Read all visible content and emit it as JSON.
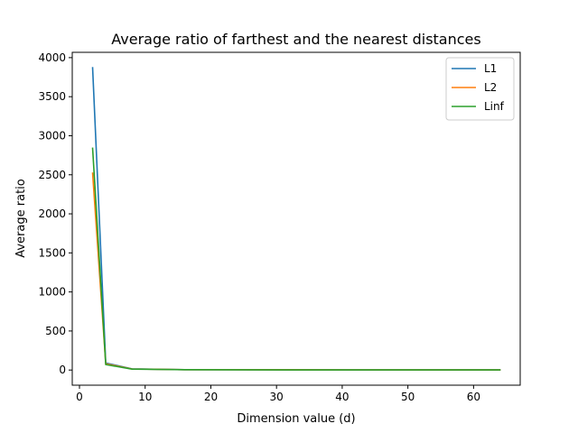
{
  "chart_data": {
    "type": "line",
    "title": "Average ratio of  farthest and the nearest distances",
    "xlabel": "Dimension value (d)",
    "ylabel": "Average ratio",
    "xlim": [
      -1.1,
      67.1
    ],
    "ylim": [
      -194,
      4068
    ],
    "xticks": [
      0,
      10,
      20,
      30,
      40,
      50,
      60
    ],
    "yticks": [
      0,
      500,
      1000,
      1500,
      2000,
      2500,
      3000,
      3500,
      4000
    ],
    "grid": false,
    "legend_position": "top-right",
    "x": [
      2,
      4,
      8,
      16,
      32,
      64
    ],
    "series": [
      {
        "name": "L1",
        "color": "#1f77b4",
        "values": [
          3870,
          90,
          15,
          5,
          2.5,
          1.5
        ]
      },
      {
        "name": "L2",
        "color": "#ff7f0e",
        "values": [
          2520,
          80,
          14,
          5,
          2.5,
          1.5
        ]
      },
      {
        "name": "Linf",
        "color": "#2ca02c",
        "values": [
          2840,
          70,
          12,
          4,
          2.0,
          1.2
        ]
      }
    ]
  }
}
